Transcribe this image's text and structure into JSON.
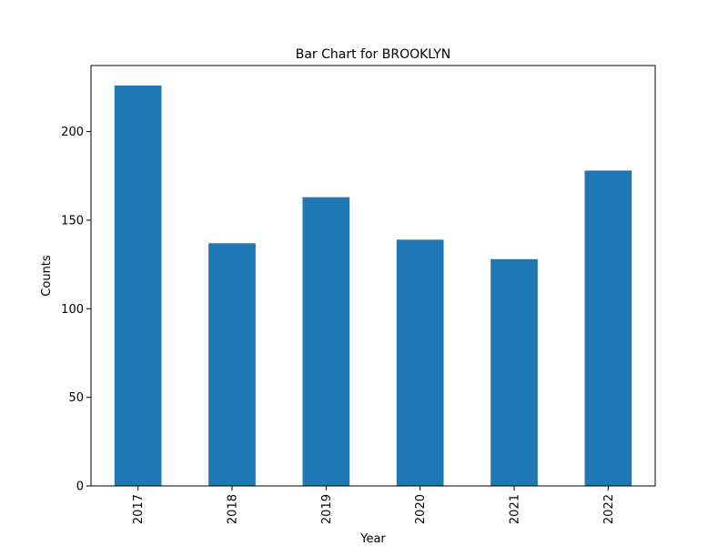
{
  "chart_data": {
    "type": "bar",
    "title": "Bar Chart for BROOKLYN",
    "xlabel": "Year",
    "ylabel": "Counts",
    "categories": [
      "2017",
      "2018",
      "2019",
      "2020",
      "2021",
      "2022"
    ],
    "values": [
      226,
      137,
      163,
      139,
      128,
      178
    ],
    "ylim": [
      0,
      237.3
    ],
    "yticks": [
      0,
      50,
      100,
      150,
      200
    ],
    "grid": false,
    "legend": "none",
    "bar_color": "#1f77b4"
  }
}
